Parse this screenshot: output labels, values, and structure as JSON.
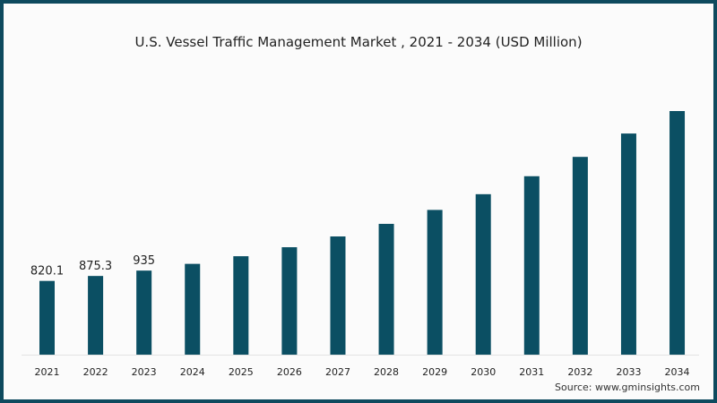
{
  "colors": {
    "bar": "#0b4f63",
    "border": "#0e4a5e",
    "background": "#fbfbfb"
  },
  "chart_data": {
    "type": "bar",
    "title": "U.S. Vessel Traffic Management Market , 2021 - 2034 (USD Million)",
    "xlabel": "",
    "ylabel": "",
    "categories": [
      "2021",
      "2022",
      "2023",
      "2024",
      "2025",
      "2026",
      "2027",
      "2028",
      "2029",
      "2030",
      "2031",
      "2032",
      "2033",
      "2034"
    ],
    "values": [
      820.1,
      875.3,
      935,
      1010,
      1095,
      1195,
      1315,
      1455,
      1610,
      1785,
      1985,
      2200,
      2460,
      2710
    ],
    "data_labels": [
      "820.1",
      "875.3",
      "935",
      "",
      "",
      "",
      "",
      "",
      "",
      "",
      "",
      "",
      "",
      ""
    ],
    "ylim": [
      0,
      2900
    ],
    "grid": false,
    "legend": "none"
  },
  "source": "Source: www.gminsights.com"
}
